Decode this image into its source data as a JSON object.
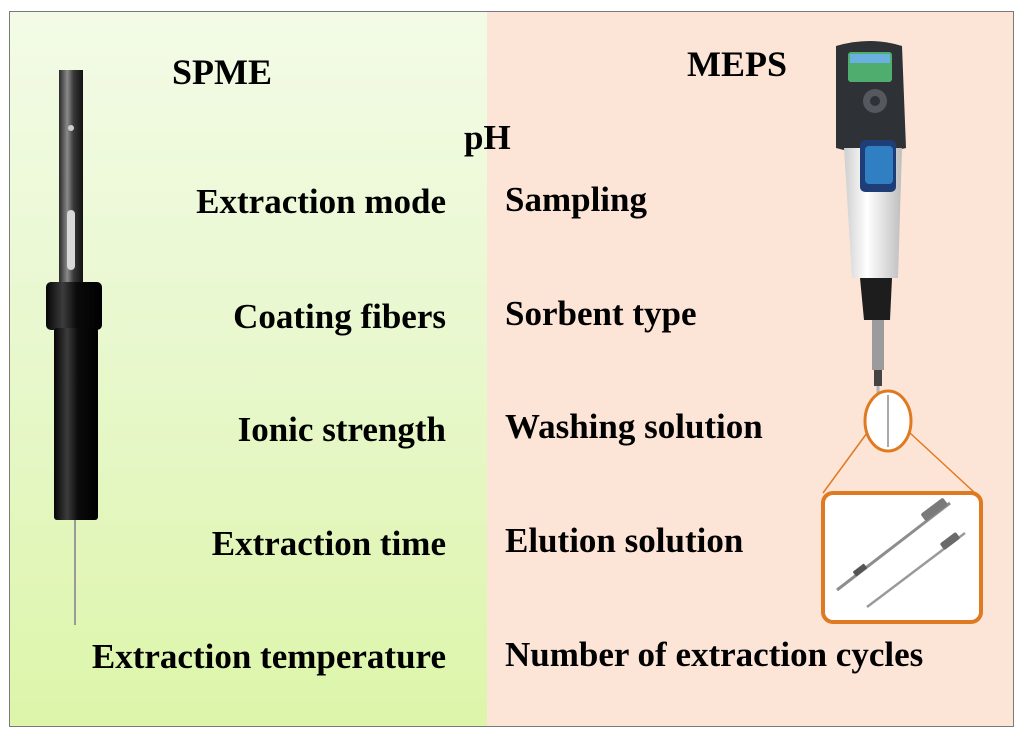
{
  "left": {
    "title": "SPME",
    "parameters": [
      "Extraction mode",
      "Coating fibers",
      "Ionic strength",
      "Extraction time",
      "Extraction temperature"
    ]
  },
  "shared": {
    "parameter": "pH"
  },
  "right": {
    "title": "MEPS",
    "parameters": [
      "Sampling",
      "Sorbent type",
      "Washing solution",
      "Elution solution",
      "Number of extraction cycles"
    ]
  },
  "colors": {
    "spme_bg": "#e3f7bb",
    "meps_bg": "#fce5d7",
    "highlight_orange": "#e07a22"
  },
  "icons": [
    "spme-fiber-holder-image",
    "meps-syringe-image",
    "meps-needle-zoom-image"
  ]
}
